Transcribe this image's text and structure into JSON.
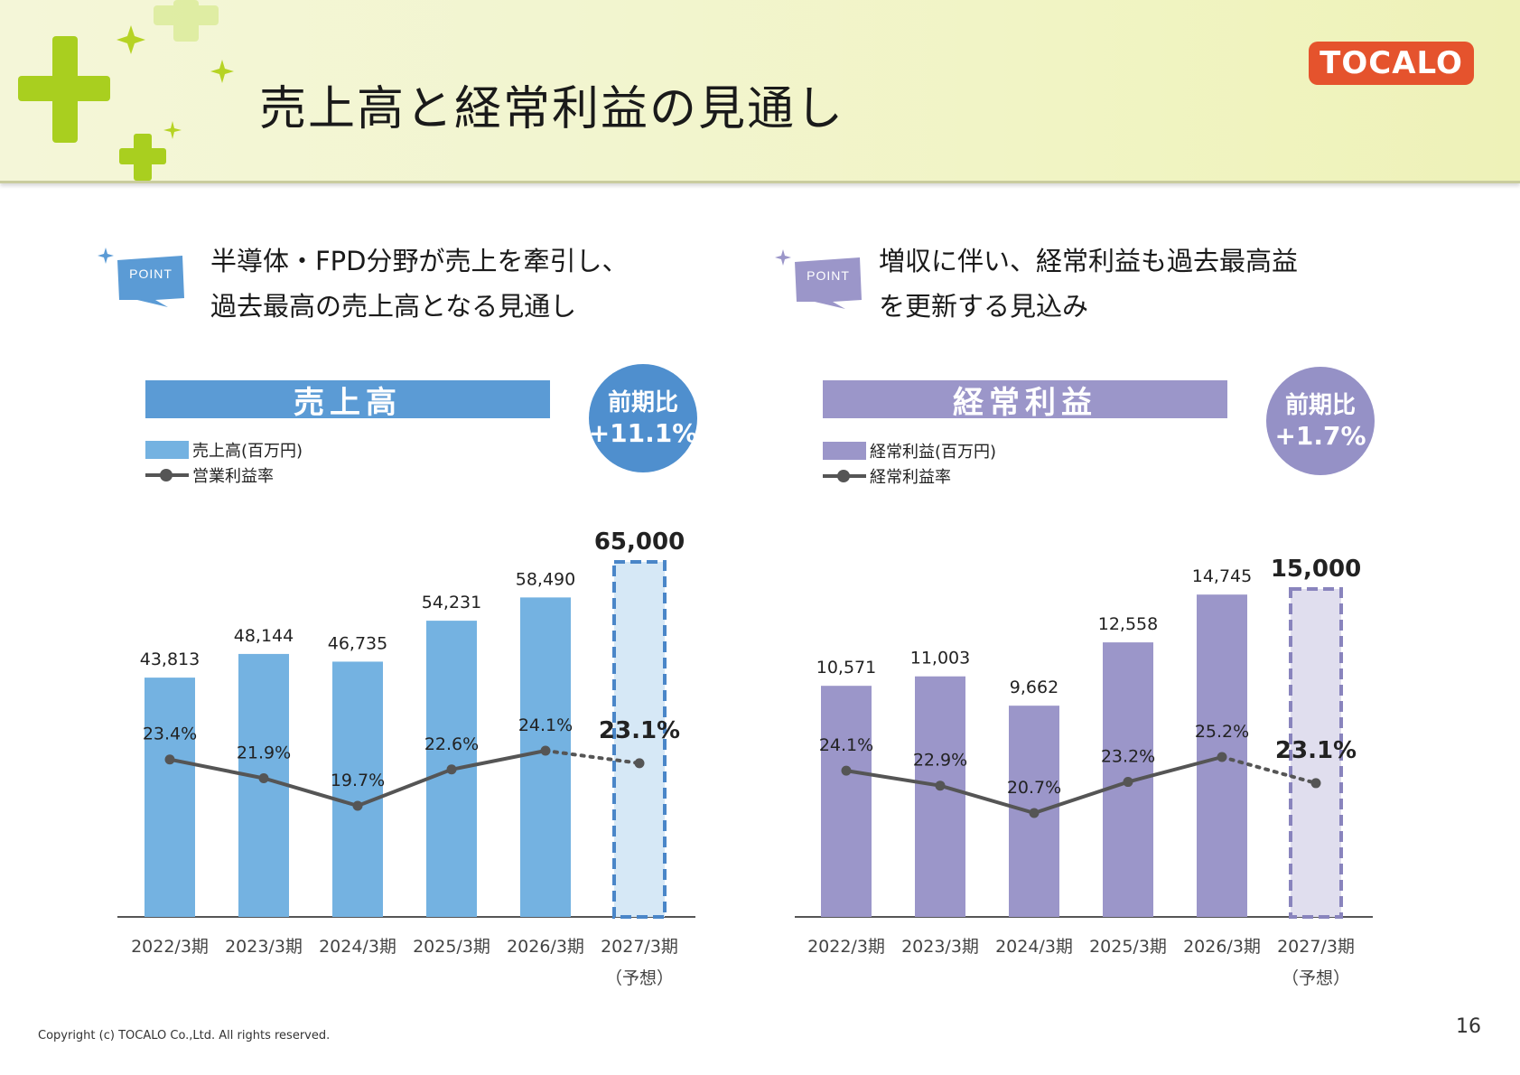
{
  "page": {
    "title": "売上高と経常利益の見通し",
    "logo_text": "TOCALO",
    "copyright": "Copyright (c) TOCALO Co.,Ltd. All rights reserved.",
    "page_number": "16"
  },
  "points": [
    {
      "badge": "POINT",
      "lines": [
        "半導体・FPD分野が売上を牽引し、",
        "過去最高の売上高となる見通し"
      ],
      "color": "#5b9bd5"
    },
    {
      "badge": "POINT",
      "lines": [
        "増収に伴い、経常利益も過去最高益",
        "を更新する見込み"
      ],
      "color": "#9b96c9"
    }
  ],
  "colors": {
    "sales_bar": "#74b2e1",
    "sales_forecast": "#d6e8f6",
    "sales_forecast_border": "#4a86c8",
    "sales_banner": "#5b9bd5",
    "sales_badge": "#4f8fce",
    "profit_bar": "#9b96c9",
    "profit_forecast": "#e0deee",
    "profit_forecast_border": "#8984bd",
    "profit_banner": "#9b96c9",
    "profit_badge": "#9591c6",
    "line": "#555555"
  },
  "chart_data": [
    {
      "type": "bar",
      "title": "売上高",
      "badge": {
        "label": "前期比",
        "value": "+11.1%"
      },
      "legend": {
        "bar": "売上高(百万円)",
        "line": "営業利益率"
      },
      "categories": [
        "2022/3期",
        "2023/3期",
        "2024/3期",
        "2025/3期",
        "2026/3期",
        "2027/3期"
      ],
      "forecast_note": "（予想）",
      "series": [
        {
          "name": "売上高(百万円)",
          "kind": "bar",
          "values": [
            43813,
            48144,
            46735,
            54231,
            58490,
            65000
          ],
          "labels": [
            "43,813",
            "48,144",
            "46,735",
            "54,231",
            "58,490",
            "65,000"
          ]
        },
        {
          "name": "営業利益率",
          "kind": "line",
          "values": [
            23.4,
            21.9,
            19.7,
            22.6,
            24.1,
            23.1
          ],
          "labels": [
            "23.4%",
            "21.9%",
            "19.7%",
            "22.6%",
            "24.1%",
            "23.1%"
          ]
        }
      ],
      "forecast_index": 5
    },
    {
      "type": "bar",
      "title": "経常利益",
      "badge": {
        "label": "前期比",
        "value": "+1.7%"
      },
      "legend": {
        "bar": "経常利益(百万円)",
        "line": "経常利益率"
      },
      "categories": [
        "2022/3期",
        "2023/3期",
        "2024/3期",
        "2025/3期",
        "2026/3期",
        "2027/3期"
      ],
      "forecast_note": "（予想）",
      "series": [
        {
          "name": "経常利益(百万円)",
          "kind": "bar",
          "values": [
            10571,
            11003,
            9662,
            12558,
            14745,
            15000
          ],
          "labels": [
            "10,571",
            "11,003",
            "9,662",
            "12,558",
            "14,745",
            "15,000"
          ]
        },
        {
          "name": "経常利益率",
          "kind": "line",
          "values": [
            24.1,
            22.9,
            20.7,
            23.2,
            25.2,
            23.1
          ],
          "labels": [
            "24.1%",
            "22.9%",
            "20.7%",
            "23.2%",
            "25.2%",
            "23.1%"
          ]
        }
      ],
      "forecast_index": 5
    }
  ]
}
